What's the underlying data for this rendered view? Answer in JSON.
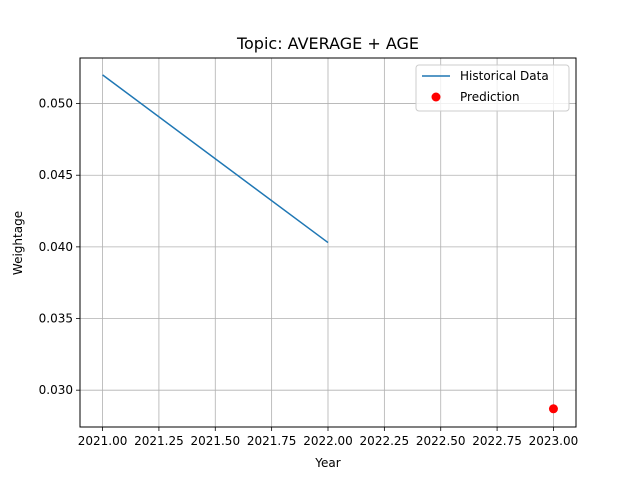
{
  "chart_data": {
    "type": "line",
    "title": "Topic: AVERAGE + AGE",
    "xlabel": "Year",
    "ylabel": "Weightage",
    "xlim": [
      2020.9,
      2023.1
    ],
    "ylim": [
      0.02743,
      0.05318
    ],
    "xticks": [
      2021.0,
      2021.25,
      2021.5,
      2021.75,
      2022.0,
      2022.25,
      2022.5,
      2022.75,
      2023.0
    ],
    "xtick_labels": [
      "2021.00",
      "2021.25",
      "2021.50",
      "2021.75",
      "2022.00",
      "2022.25",
      "2022.50",
      "2022.75",
      "2023.00"
    ],
    "yticks": [
      0.03,
      0.035,
      0.04,
      0.045,
      0.05
    ],
    "ytick_labels": [
      "0.030",
      "0.035",
      "0.040",
      "0.045",
      "0.050"
    ],
    "grid": true,
    "legend_position": "top-right",
    "series": [
      {
        "name": "Historical Data",
        "kind": "line",
        "color": "#1f77b4",
        "x": [
          2021,
          2022
        ],
        "y": [
          0.052,
          0.0403
        ]
      },
      {
        "name": "Prediction",
        "kind": "scatter",
        "color": "#ff0000",
        "x": [
          2023
        ],
        "y": [
          0.0287
        ]
      }
    ]
  }
}
